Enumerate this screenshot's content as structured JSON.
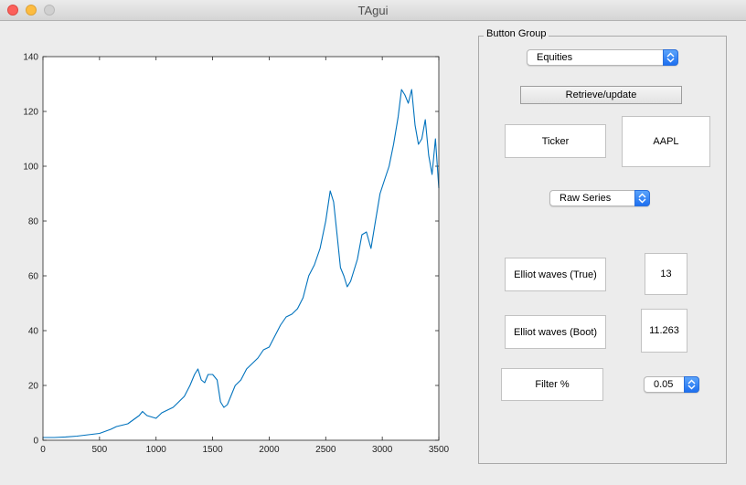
{
  "window": {
    "title": "TAgui"
  },
  "panel": {
    "title": "Button Group"
  },
  "controls": {
    "asset_class": "Equities",
    "retrieve_button": "Retrieve/update",
    "ticker_label": "Ticker",
    "ticker_value": "AAPL",
    "series_type": "Raw Series",
    "elliot_true_label": "Elliot waves (True)",
    "elliot_true_value": "13",
    "elliot_boot_label": "Elliot waves (Boot)",
    "elliot_boot_value": "11.263",
    "filter_label": "Filter %",
    "filter_value": "0.05"
  },
  "colors": {
    "line": "#0072bd",
    "axis": "#262626",
    "stepper": "#1d6ff0"
  },
  "icons": {
    "stepper": "up-down-chevron-icon"
  },
  "chart_data": {
    "type": "line",
    "title": "",
    "xlabel": "",
    "ylabel": "",
    "xlim": [
      0,
      3500
    ],
    "ylim": [
      0,
      140
    ],
    "xticks": [
      0,
      500,
      1000,
      1500,
      2000,
      2500,
      3000,
      3500
    ],
    "yticks": [
      0,
      20,
      40,
      60,
      80,
      100,
      120,
      140
    ],
    "grid": false,
    "series": [
      {
        "x": [
          0,
          100,
          200,
          300,
          400,
          500,
          600,
          650,
          700,
          750,
          800,
          850,
          880,
          920,
          960,
          1000,
          1050,
          1100,
          1150,
          1200,
          1250,
          1300,
          1340,
          1370,
          1400,
          1430,
          1460,
          1500,
          1540,
          1570,
          1600,
          1630,
          1660,
          1700,
          1750,
          1800,
          1850,
          1900,
          1950,
          2000,
          2050,
          2100,
          2150,
          2200,
          2250,
          2300,
          2350,
          2400,
          2450,
          2500,
          2540,
          2570,
          2600,
          2630,
          2660,
          2690,
          2720,
          2750,
          2780,
          2820,
          2860,
          2900,
          2940,
          2980,
          3020,
          3060,
          3100,
          3140,
          3170,
          3200,
          3230,
          3260,
          3290,
          3320,
          3350,
          3380,
          3410,
          3440,
          3470,
          3500
        ],
        "values": [
          1,
          1,
          1.2,
          1.5,
          2,
          2.5,
          4,
          5,
          5.5,
          6,
          7.5,
          9,
          10.5,
          9,
          8.5,
          8,
          10,
          11,
          12,
          14,
          16,
          20,
          24,
          26,
          22,
          21,
          24,
          24,
          22,
          14,
          12,
          13,
          16,
          20,
          22,
          26,
          28,
          30,
          33,
          34,
          38,
          42,
          45,
          46,
          48,
          52,
          60,
          64,
          70,
          80,
          91,
          87,
          75,
          63,
          60,
          56,
          58,
          62,
          66,
          75,
          76,
          70,
          80,
          90,
          95,
          100,
          108,
          118,
          128,
          126,
          123,
          128,
          115,
          108,
          110,
          117,
          104,
          97,
          110,
          92
        ]
      }
    ]
  }
}
